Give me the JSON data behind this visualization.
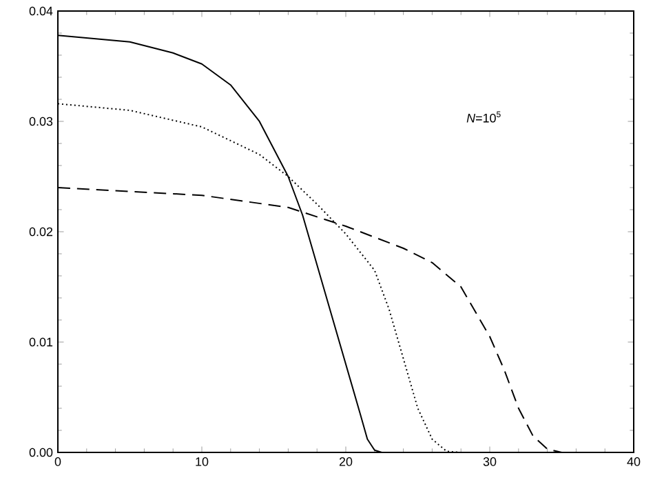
{
  "chart_data": {
    "type": "line",
    "annotations": [
      "*N*=10$^{5}$"
    ],
    "xlim": [
      0,
      40
    ],
    "xticks": [
      0,
      10,
      20,
      30,
      40
    ],
    "ylim": [
      0,
      0.04
    ],
    "yticks": [
      {
        "value": 0,
        "label": "0.00"
      },
      {
        "value": 0.01,
        "label": "0.01"
      },
      {
        "value": 0.02,
        "label": "0.02"
      },
      {
        "value": 0.03,
        "label": "0.03"
      },
      {
        "value": 0.04,
        "label": "0.04"
      }
    ],
    "series": [
      {
        "color": "#000000",
        "line_style": "solid",
        "x": [
          0,
          5,
          8,
          10,
          12,
          14,
          16,
          17,
          18,
          19,
          20,
          21,
          21.5,
          22,
          22.5
        ],
        "values": [
          0.0378,
          0.0372,
          0.0362,
          0.0352,
          0.0333,
          0.03,
          0.025,
          0.0215,
          0.017,
          0.0125,
          0.008,
          0.0035,
          0.0012,
          0.0002,
          0
        ]
      },
      {
        "color": "#000000",
        "line_style": "dotted",
        "x": [
          0,
          5,
          10,
          14,
          16,
          18,
          20,
          22,
          23,
          24,
          25,
          26,
          27,
          28
        ],
        "values": [
          0.0316,
          0.031,
          0.0295,
          0.027,
          0.025,
          0.0225,
          0.0198,
          0.0165,
          0.013,
          0.0085,
          0.004,
          0.0012,
          0.0001,
          0
        ]
      },
      {
        "color": "#000000",
        "line_style": "dashed",
        "x": [
          0,
          10,
          16,
          20,
          24,
          26,
          28,
          30,
          31,
          32,
          33,
          34,
          35
        ],
        "values": [
          0.024,
          0.0233,
          0.0222,
          0.0205,
          0.0185,
          0.0172,
          0.015,
          0.0105,
          0.0075,
          0.004,
          0.0015,
          0.0003,
          0
        ]
      }
    ]
  }
}
